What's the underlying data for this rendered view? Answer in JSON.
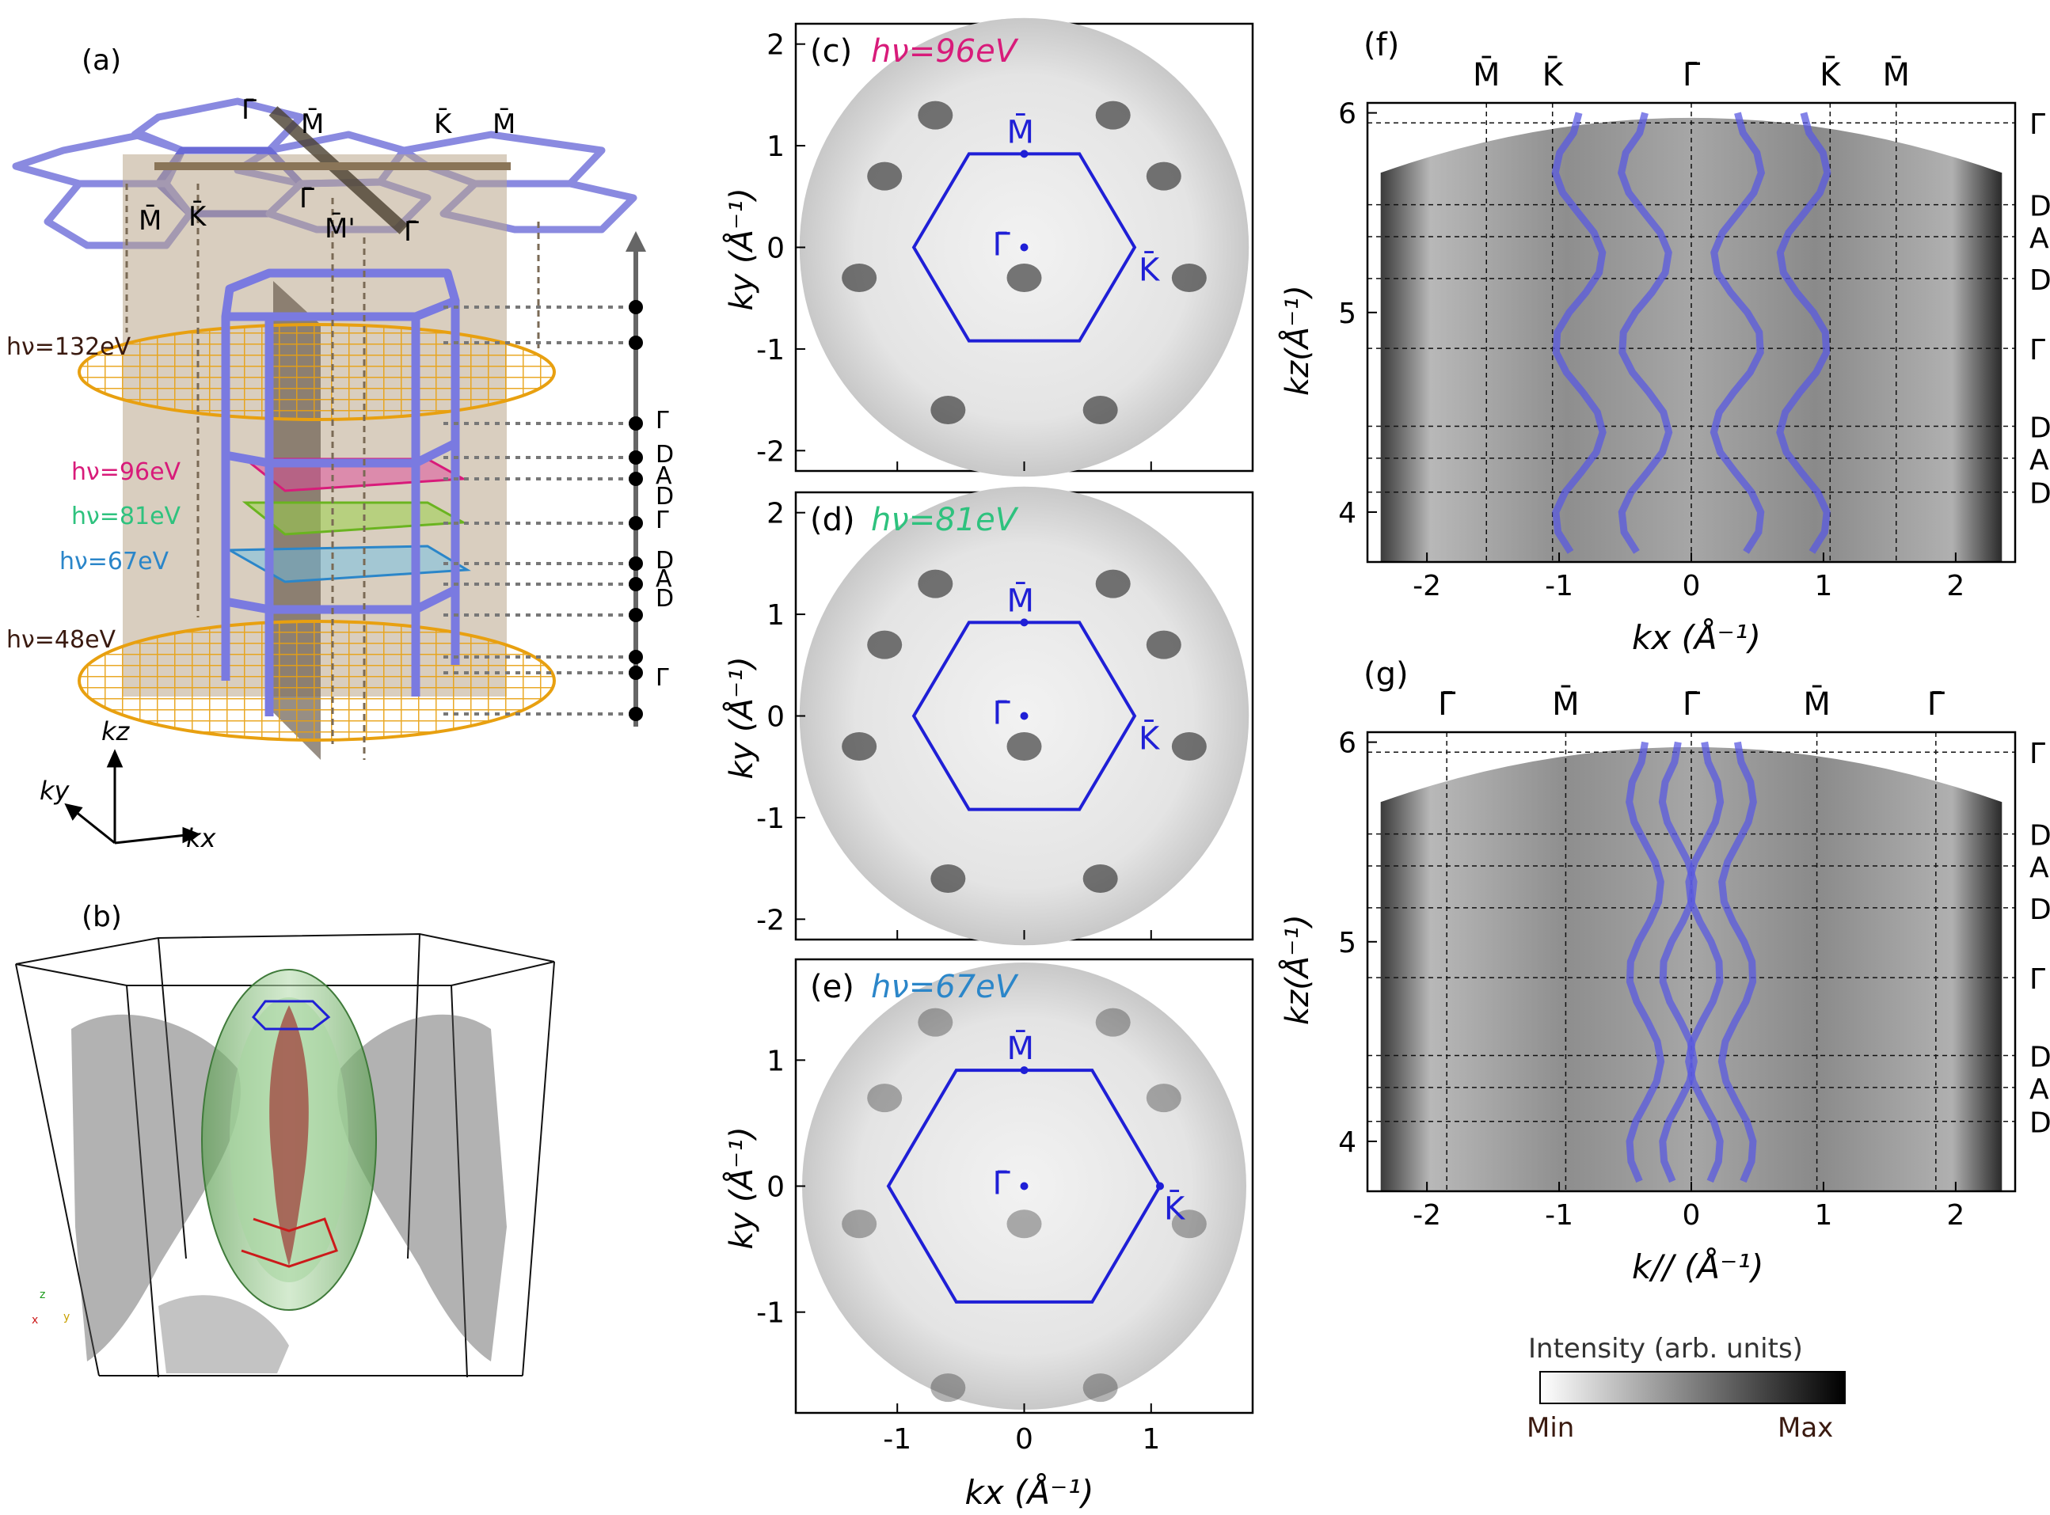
{
  "colors": {
    "bz": "#1f1fd6",
    "calc": "#5a5ae0",
    "orange": "#f0b01a",
    "slab": "#b9a68a",
    "hv96": "#d81b7a",
    "hv81": "#2ec27e",
    "hv67": "#2b86c9",
    "hvdark": "#3a1a10"
  },
  "panel_a": {
    "label": "(a)",
    "top_points": [
      "Γ̄",
      "M̄",
      "K̄",
      "M̄",
      "M̄",
      "K̄",
      "Γ̄",
      "M̄'",
      "Γ̄"
    ],
    "energies": [
      {
        "label": "hν=132eV",
        "color": "#3a1a10"
      },
      {
        "label": "hν=96eV",
        "color": "#d81b7a"
      },
      {
        "label": "hν=81eV",
        "color": "#2ec27e"
      },
      {
        "label": "hν=67eV",
        "color": "#2b86c9"
      },
      {
        "label": "hν=48eV",
        "color": "#3a1a10"
      }
    ],
    "kz_axis_labels": [
      "Γ",
      "D",
      "A",
      "D",
      "Γ",
      "D",
      "A",
      "D",
      "Γ"
    ],
    "axes": {
      "kz": "kz",
      "ky": "ky",
      "kx": "kx"
    }
  },
  "panel_b": {
    "label": "(b)",
    "mini_axes": [
      "z",
      "x",
      "y"
    ]
  },
  "maps": [
    {
      "label": "(c)",
      "hv": "hν=96eV",
      "hv_color": "#d81b7a",
      "yticks": [
        "2",
        "1",
        "0",
        "-1",
        "-2"
      ],
      "xticks": [],
      "ylabel": "ky (Å⁻¹)",
      "points": {
        "M": "M̄",
        "G": "Γ̄",
        "K": "K̄"
      }
    },
    {
      "label": "(d)",
      "hv": "hν=81eV",
      "hv_color": "#2ec27e",
      "yticks": [
        "2",
        "1",
        "0",
        "-1",
        "-2"
      ],
      "xticks": [],
      "ylabel": "ky (Å⁻¹)",
      "points": {
        "M": "M̄",
        "G": "Γ̄",
        "K": "K̄"
      }
    },
    {
      "label": "(e)",
      "hv": "hν=67eV",
      "hv_color": "#2b86c9",
      "yticks": [
        "1",
        "0",
        "-1"
      ],
      "xticks": [
        "-1",
        "0",
        "1"
      ],
      "ylabel": "ky (Å⁻¹)",
      "xlabel": "kx (Å⁻¹)",
      "points": {
        "M": "M̄",
        "G": "Γ̄",
        "K": "K̄"
      }
    }
  ],
  "panel_f": {
    "label": "(f)",
    "top": [
      "M̄",
      "K̄",
      "Γ̄",
      "K̄",
      "M̄"
    ],
    "right": [
      "Γ",
      "D",
      "A",
      "D",
      "Γ",
      "D",
      "A",
      "D"
    ],
    "yticks": [
      "6",
      "5",
      "4"
    ],
    "xticks": [
      "-2",
      "-1",
      "0",
      "1",
      "2"
    ],
    "ylabel": "kz(Å⁻¹)",
    "xlabel": "kx (Å⁻¹)"
  },
  "panel_g": {
    "label": "(g)",
    "top": [
      "Γ̄",
      "M̄",
      "Γ̄",
      "M̄",
      "Γ̄"
    ],
    "right": [
      "Γ",
      "D",
      "A",
      "D",
      "Γ",
      "D",
      "A",
      "D"
    ],
    "yticks": [
      "6",
      "5",
      "4"
    ],
    "xticks": [
      "-2",
      "-1",
      "0",
      "1",
      "2"
    ],
    "ylabel": "kz(Å⁻¹)",
    "xlabel": "k// (Å⁻¹)"
  },
  "colorbar": {
    "title": "Intensity (arb. units)",
    "min": "Min",
    "max": "Max"
  }
}
